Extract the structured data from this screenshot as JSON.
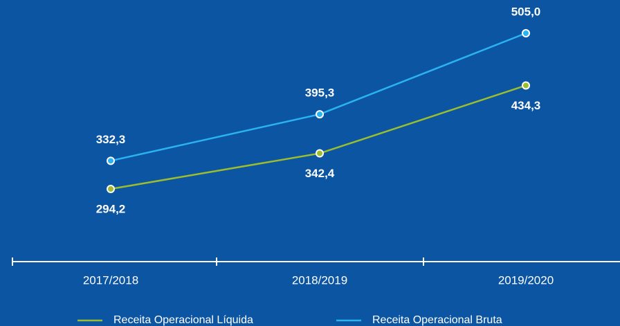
{
  "chart_data": {
    "type": "line",
    "categories": [
      "2017/2018",
      "2018/2019",
      "2019/2020"
    ],
    "series": [
      {
        "name": "Receita Operacional Líquida",
        "color": "#9bbd2e",
        "values": [
          294.2,
          342.4,
          434.3
        ],
        "value_labels": [
          "294,2",
          "342,4",
          "434,3"
        ]
      },
      {
        "name": "Receita Operacional Bruta",
        "color": "#2bb3f0",
        "values": [
          332.3,
          395.3,
          505.0
        ],
        "value_labels": [
          "332,3",
          "395,3",
          "505,0"
        ]
      }
    ]
  }
}
